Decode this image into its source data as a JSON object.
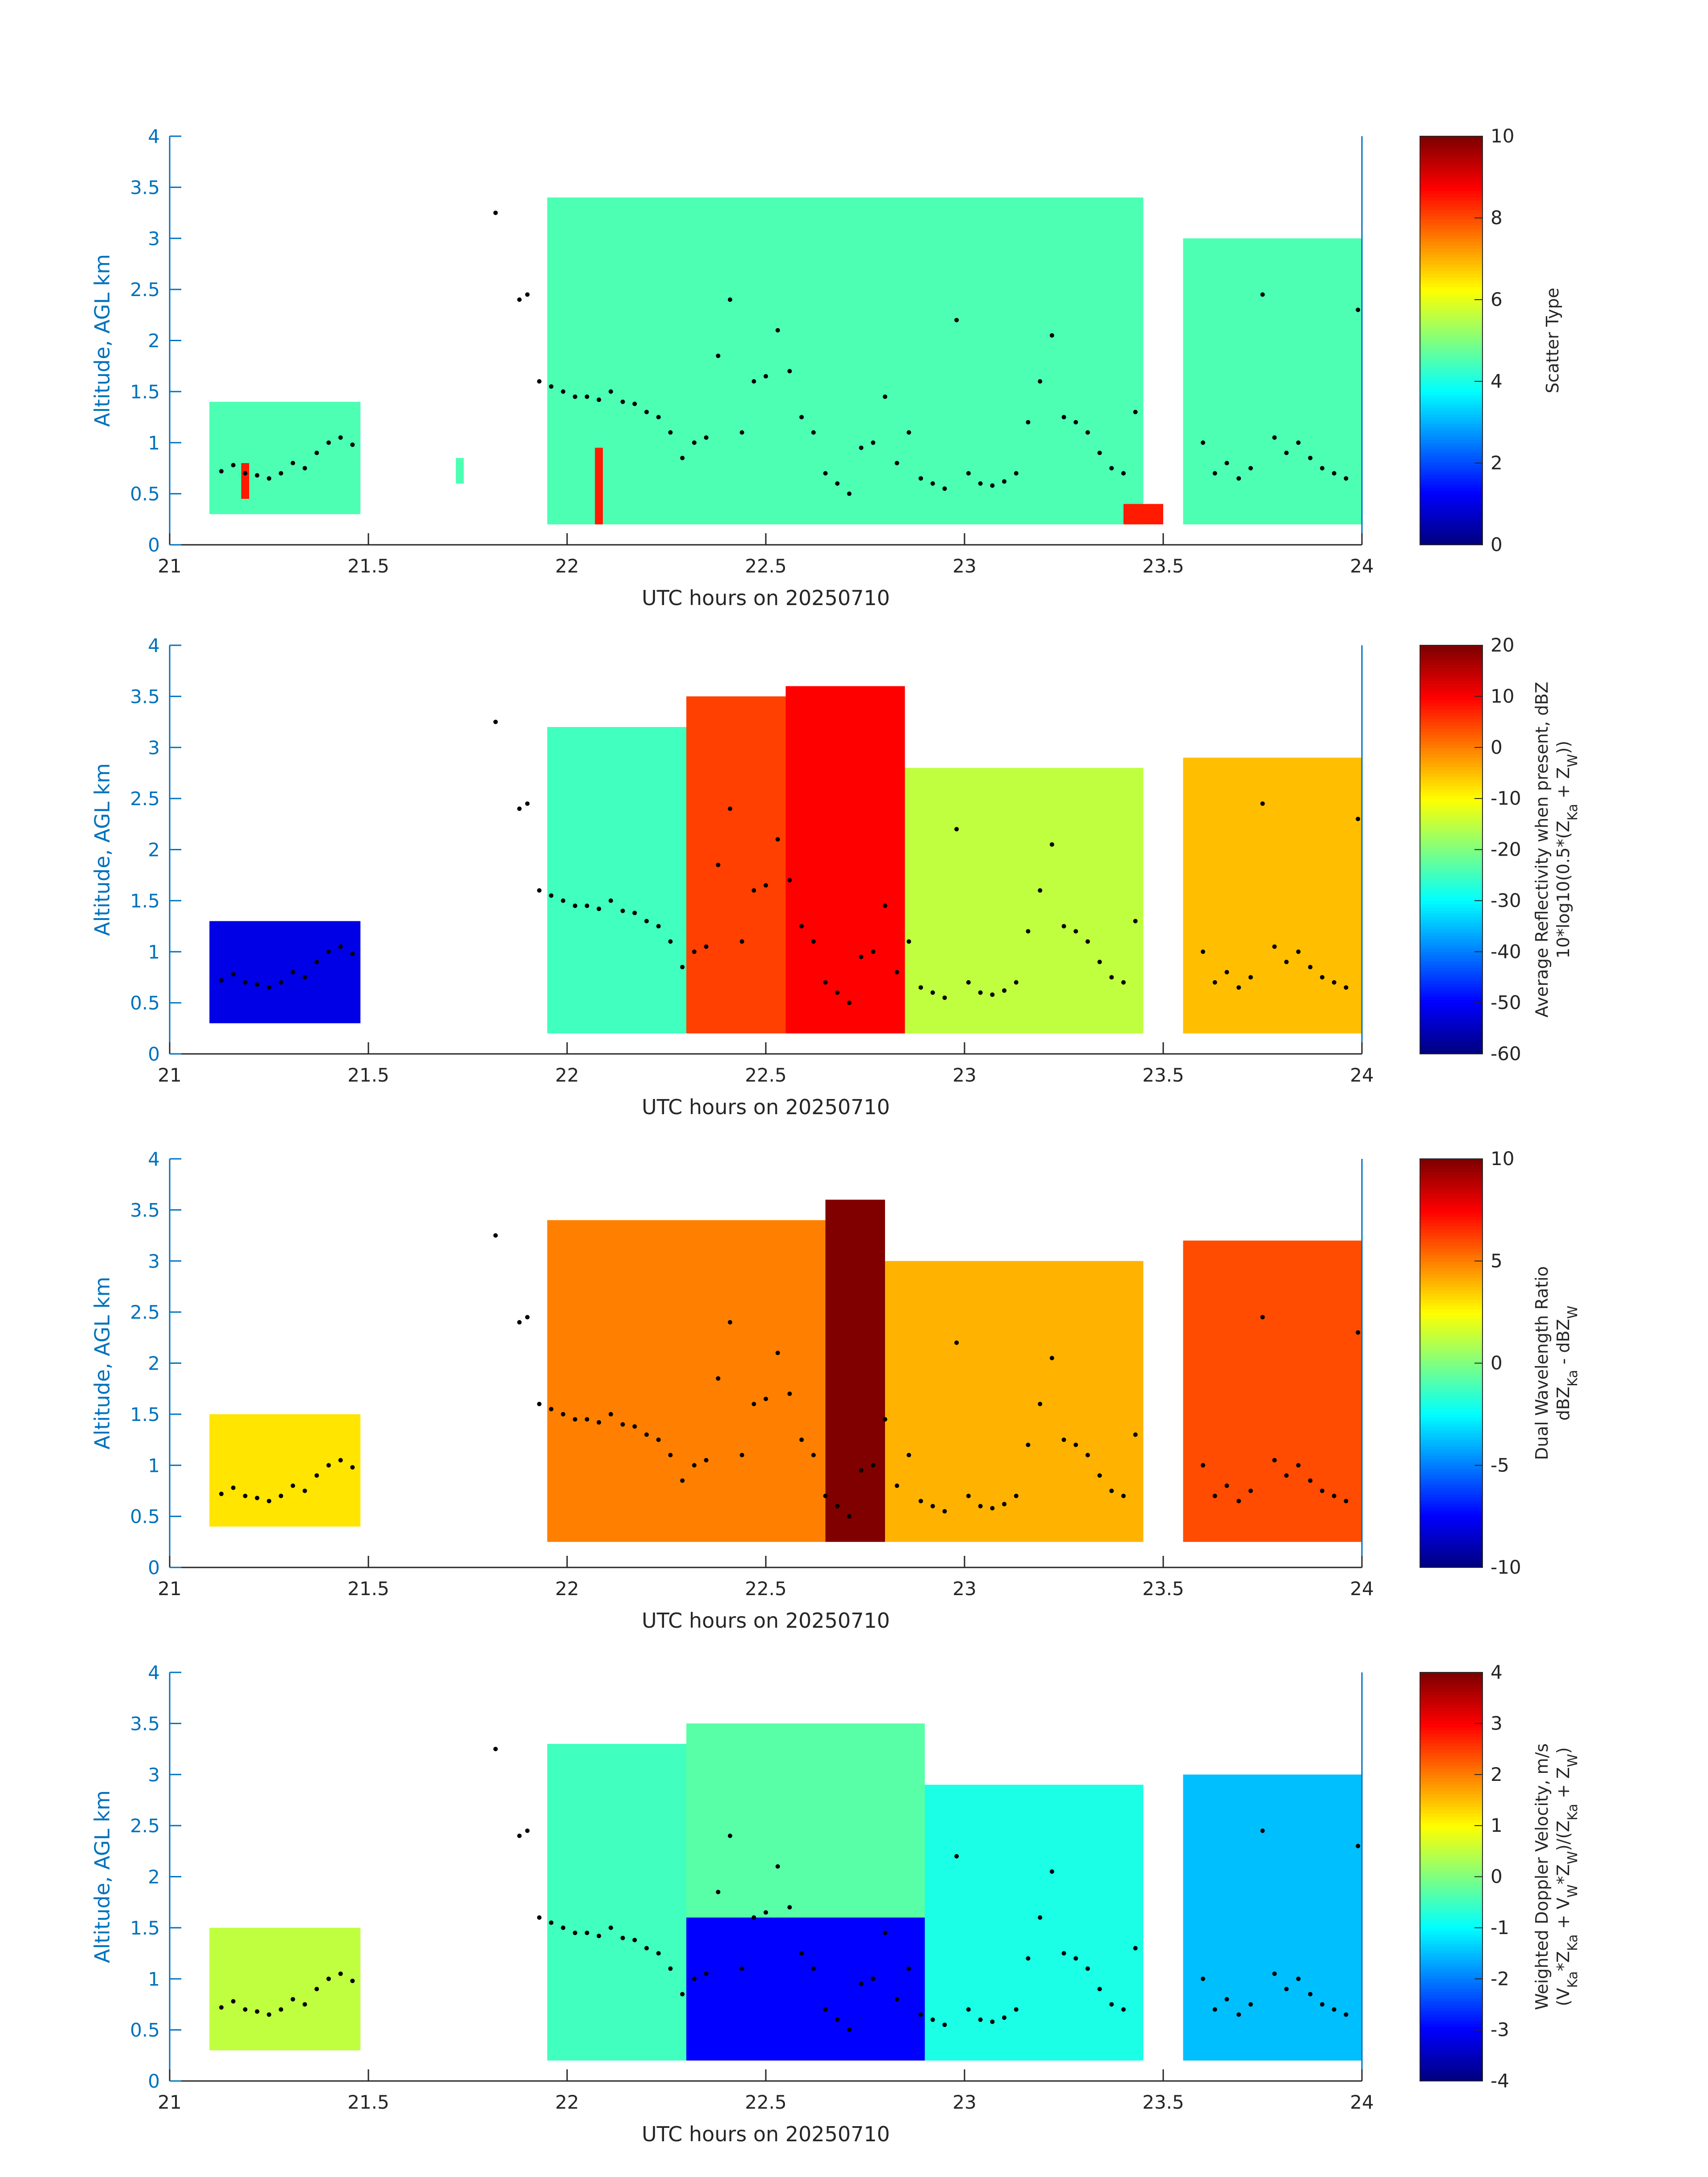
{
  "figure": {
    "xlabel": "UTC hours on 20250710",
    "ylabel": "Altitude, AGL km",
    "x_ticks": [
      "21",
      "21.5",
      "22",
      "22.5",
      "23",
      "23.5",
      "24"
    ],
    "y_ticks": [
      "0",
      "0.5",
      "1",
      "1.5",
      "2",
      "2.5",
      "3",
      "3.5",
      "4"
    ],
    "axis_color": "#0072bd"
  },
  "chart_data": [
    {
      "type": "heatmap",
      "name": "scatter-type",
      "xlim": [
        21,
        24
      ],
      "ylim": [
        0,
        4
      ],
      "cbar_label": [
        "Scatter Type"
      ],
      "clim": [
        0,
        10
      ],
      "cbar_ticks": [
        "0",
        "2",
        "4",
        "6",
        "8",
        "10"
      ],
      "colormap": "jet",
      "regions": [
        {
          "x0": 21.1,
          "x1": 21.48,
          "y0": 0.3,
          "y1": 1.4,
          "value": 4.5
        },
        {
          "x0": 21.72,
          "x1": 21.74,
          "y0": 0.6,
          "y1": 0.85,
          "value": 4.5
        },
        {
          "x0": 21.95,
          "x1": 23.45,
          "y0": 0.2,
          "y1": 3.4,
          "value": 4.5
        },
        {
          "x0": 23.55,
          "x1": 24.0,
          "y0": 0.2,
          "y1": 3.0,
          "value": 4.5
        },
        {
          "x0": 21.18,
          "x1": 21.2,
          "y0": 0.45,
          "y1": 0.8,
          "value": 8.5
        },
        {
          "x0": 22.07,
          "x1": 22.09,
          "y0": 0.2,
          "y1": 0.95,
          "value": 8.5
        },
        {
          "x0": 23.4,
          "x1": 23.5,
          "y0": 0.2,
          "y1": 0.4,
          "value": 8.5
        }
      ]
    },
    {
      "type": "heatmap",
      "name": "average-reflectivity",
      "xlim": [
        21,
        24
      ],
      "ylim": [
        0,
        4
      ],
      "cbar_label": [
        "Average Reflectivity when present, dBZ",
        "10*log10(0.5*(Z_Ka + Z_W))"
      ],
      "clim": [
        -60,
        20
      ],
      "cbar_ticks": [
        "-60",
        "-50",
        "-40",
        "-30",
        "-20",
        "-10",
        "0",
        "10",
        "20"
      ],
      "colormap": "jet",
      "regions": [
        {
          "x0": 21.1,
          "x1": 21.48,
          "y0": 0.3,
          "y1": 1.3,
          "value": -52
        },
        {
          "x0": 21.95,
          "x1": 22.3,
          "y0": 0.2,
          "y1": 3.2,
          "value": -25
        },
        {
          "x0": 22.3,
          "x1": 22.55,
          "y0": 0.2,
          "y1": 3.5,
          "value": 5
        },
        {
          "x0": 22.55,
          "x1": 22.85,
          "y0": 0.2,
          "y1": 3.6,
          "value": 10
        },
        {
          "x0": 22.85,
          "x1": 23.45,
          "y0": 0.2,
          "y1": 2.8,
          "value": -15
        },
        {
          "x0": 23.55,
          "x1": 24.0,
          "y0": 0.2,
          "y1": 2.9,
          "value": -5
        }
      ]
    },
    {
      "type": "heatmap",
      "name": "dual-wavelength-ratio",
      "xlim": [
        21,
        24
      ],
      "ylim": [
        0,
        4
      ],
      "cbar_label": [
        "Dual Wavelength Ratio",
        "dBZ_Ka - dBZ_W"
      ],
      "clim": [
        -10,
        10
      ],
      "cbar_ticks": [
        "-10",
        "-5",
        "0",
        "5",
        "10"
      ],
      "colormap": "jet",
      "regions": [
        {
          "x0": 21.1,
          "x1": 21.48,
          "y0": 0.4,
          "y1": 1.5,
          "value": 3
        },
        {
          "x0": 21.95,
          "x1": 22.65,
          "y0": 0.25,
          "y1": 3.4,
          "value": 5
        },
        {
          "x0": 22.65,
          "x1": 22.8,
          "y0": 0.25,
          "y1": 3.6,
          "value": 10
        },
        {
          "x0": 22.8,
          "x1": 23.45,
          "y0": 0.25,
          "y1": 3.0,
          "value": 4
        },
        {
          "x0": 23.55,
          "x1": 24.0,
          "y0": 0.25,
          "y1": 3.2,
          "value": 6
        }
      ]
    },
    {
      "type": "heatmap",
      "name": "weighted-doppler-velocity",
      "xlim": [
        21,
        24
      ],
      "ylim": [
        0,
        4
      ],
      "cbar_label": [
        "Weighted Doppler Velocity, m/s",
        "(V_Ka*Z_Ka + V_W*Z_W)/(Z_Ka + Z_W)"
      ],
      "clim": [
        -4,
        4
      ],
      "cbar_ticks": [
        "-4",
        "-3",
        "-2",
        "-1",
        "0",
        "1",
        "2",
        "3",
        "4"
      ],
      "colormap": "jet",
      "regions": [
        {
          "x0": 21.1,
          "x1": 21.48,
          "y0": 0.3,
          "y1": 1.5,
          "value": 0.5
        },
        {
          "x0": 21.95,
          "x1": 22.3,
          "y0": 0.2,
          "y1": 3.3,
          "value": -0.5
        },
        {
          "x0": 22.3,
          "x1": 22.9,
          "y0": 0.2,
          "y1": 1.6,
          "value": -3
        },
        {
          "x0": 22.3,
          "x1": 22.9,
          "y0": 1.6,
          "y1": 3.5,
          "value": -0.3
        },
        {
          "x0": 22.9,
          "x1": 23.45,
          "y0": 0.2,
          "y1": 2.9,
          "value": -0.8
        },
        {
          "x0": 23.55,
          "x1": 24.0,
          "y0": 0.2,
          "y1": 3.0,
          "value": -1.5
        }
      ]
    }
  ],
  "cloud_base_points": {
    "x": [
      21.13,
      21.16,
      21.19,
      21.22,
      21.25,
      21.28,
      21.31,
      21.34,
      21.37,
      21.4,
      21.43,
      21.46,
      21.82,
      21.88,
      21.9,
      21.93,
      21.96,
      21.99,
      22.02,
      22.05,
      22.08,
      22.11,
      22.14,
      22.17,
      22.2,
      22.23,
      22.26,
      22.29,
      22.32,
      22.35,
      22.38,
      22.41,
      22.44,
      22.47,
      22.5,
      22.53,
      22.56,
      22.59,
      22.62,
      22.65,
      22.68,
      22.71,
      22.74,
      22.77,
      22.8,
      22.83,
      22.86,
      22.89,
      22.92,
      22.95,
      22.98,
      23.01,
      23.04,
      23.07,
      23.1,
      23.13,
      23.16,
      23.19,
      23.22,
      23.25,
      23.28,
      23.31,
      23.34,
      23.37,
      23.4,
      23.43,
      23.6,
      23.63,
      23.66,
      23.69,
      23.72,
      23.75,
      23.78,
      23.81,
      23.84,
      23.87,
      23.9,
      23.93,
      23.96,
      23.99
    ],
    "y": [
      0.72,
      0.78,
      0.7,
      0.68,
      0.65,
      0.7,
      0.8,
      0.75,
      0.9,
      1.0,
      1.05,
      0.98,
      3.25,
      2.4,
      2.45,
      1.6,
      1.55,
      1.5,
      1.45,
      1.45,
      1.42,
      1.5,
      1.4,
      1.38,
      1.3,
      1.25,
      1.1,
      0.85,
      1.0,
      1.05,
      1.85,
      2.4,
      1.1,
      1.6,
      1.65,
      2.1,
      1.7,
      1.25,
      1.1,
      0.7,
      0.6,
      0.5,
      0.95,
      1.0,
      1.45,
      0.8,
      1.1,
      0.65,
      0.6,
      0.55,
      2.2,
      0.7,
      0.6,
      0.58,
      0.62,
      0.7,
      1.2,
      1.6,
      2.05,
      1.25,
      1.2,
      1.1,
      0.9,
      0.75,
      0.7,
      1.3,
      1.0,
      0.7,
      0.8,
      0.65,
      0.75,
      2.45,
      1.05,
      0.9,
      1.0,
      0.85,
      0.75,
      0.7,
      0.65,
      2.3
    ]
  }
}
